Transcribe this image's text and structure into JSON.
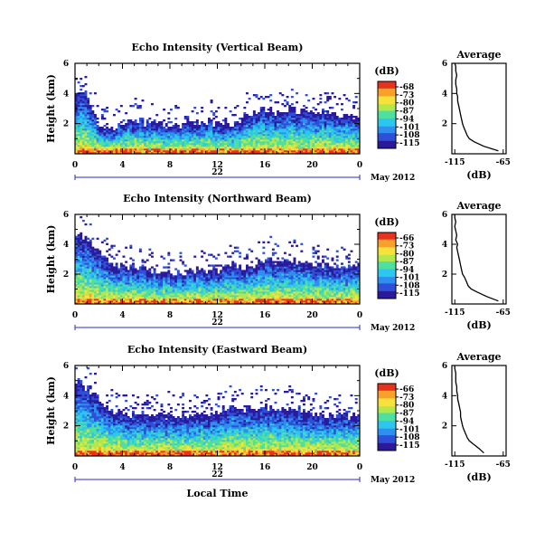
{
  "chart_data": [
    {
      "type": "heatmap",
      "title": "Echo Intensity (Vertical Beam)",
      "ylabel": "Height (km)",
      "xlabel": "",
      "x_ticks": [
        "0",
        "4",
        "8",
        "12",
        "16",
        "20",
        "0"
      ],
      "y_ticks": [
        "2",
        "4",
        "6"
      ],
      "date_ticks": [
        "22"
      ],
      "month_label": "May 2012",
      "xlim": [
        0,
        24
      ],
      "ylim": [
        0,
        6
      ],
      "colorbar": {
        "label": "(dB)",
        "ticks": [
          "-68",
          "-73",
          "-80",
          "-87",
          "-94",
          "-101",
          "-108",
          "-115"
        ]
      },
      "cloud_top_km": [
        4.0,
        3.6,
        1.6,
        1.6,
        2.0,
        2.2,
        2.0,
        1.9,
        1.8,
        1.8,
        2.0,
        2.1,
        1.9,
        1.8,
        2.2,
        2.8,
        2.9,
        2.6,
        2.9,
        2.7,
        2.7,
        2.8,
        2.6,
        2.4,
        2.4
      ],
      "average": {
        "title": "Average",
        "xlabel": "(dB)",
        "x_ticks": [
          "-115",
          "-65"
        ],
        "xlim": [
          -118,
          -62
        ],
        "y_ticks": [
          "2",
          "4",
          "6"
        ],
        "ylim": [
          0,
          6
        ],
        "heights_km": [
          0.2,
          0.5,
          0.8,
          1.0,
          1.2,
          1.5,
          1.8,
          2.0,
          2.3,
          2.6,
          2.9,
          3.2,
          3.5,
          3.8,
          4.0,
          4.3,
          4.6,
          4.9,
          5.2,
          5.5,
          5.8,
          6.0
        ],
        "values_db": [
          -70,
          -85,
          -95,
          -100,
          -102,
          -104,
          -106,
          -107,
          -108,
          -109,
          -110,
          -111,
          -112,
          -112,
          -113,
          -113,
          -114,
          -114,
          -113,
          -114,
          -114,
          -115
        ]
      }
    },
    {
      "type": "heatmap",
      "title": "Echo Intensity (Northward Beam)",
      "ylabel": "Height (km)",
      "xlabel": "",
      "x_ticks": [
        "0",
        "4",
        "8",
        "12",
        "16",
        "20",
        "0"
      ],
      "y_ticks": [
        "2",
        "4",
        "6"
      ],
      "date_ticks": [
        "22"
      ],
      "month_label": "May 2012",
      "xlim": [
        0,
        24
      ],
      "ylim": [
        0,
        6
      ],
      "colorbar": {
        "label": "(dB)",
        "ticks": [
          "-66",
          "-73",
          "-80",
          "-87",
          "-94",
          "-101",
          "-108",
          "-115"
        ]
      },
      "cloud_top_km": [
        4.6,
        4.2,
        3.3,
        2.6,
        2.4,
        2.4,
        2.2,
        2.2,
        2.0,
        2.0,
        2.2,
        2.2,
        2.2,
        2.6,
        2.4,
        2.6,
        3.0,
        2.8,
        2.8,
        2.8,
        2.6,
        2.6,
        2.4,
        2.4,
        2.4
      ],
      "average": {
        "title": "Average",
        "xlabel": "(dB)",
        "x_ticks": [
          "-115",
          "-65"
        ],
        "xlim": [
          -118,
          -62
        ],
        "y_ticks": [
          "2",
          "4",
          "6"
        ],
        "ylim": [
          0,
          6
        ],
        "heights_km": [
          0.2,
          0.5,
          0.8,
          1.0,
          1.2,
          1.5,
          1.8,
          2.0,
          2.3,
          2.6,
          2.9,
          3.2,
          3.5,
          3.8,
          4.0,
          4.3,
          4.6,
          4.9,
          5.2,
          5.5,
          5.8,
          6.0
        ],
        "values_db": [
          -70,
          -82,
          -92,
          -98,
          -101,
          -103,
          -105,
          -107,
          -108,
          -109,
          -110,
          -111,
          -112,
          -113,
          -112,
          -114,
          -113,
          -114,
          -115,
          -114,
          -115,
          -115
        ]
      }
    },
    {
      "type": "heatmap",
      "title": "Echo Intensity (Eastward Beam)",
      "ylabel": "Height (km)",
      "xlabel": "Local Time",
      "x_ticks": [
        "0",
        "4",
        "8",
        "12",
        "16",
        "20",
        "0"
      ],
      "y_ticks": [
        "2",
        "4",
        "6"
      ],
      "date_ticks": [
        "22"
      ],
      "month_label": "May 2012",
      "xlim": [
        0,
        24
      ],
      "ylim": [
        0,
        6
      ],
      "colorbar": {
        "label": "(dB)",
        "ticks": [
          "-66",
          "-73",
          "-80",
          "-87",
          "-94",
          "-101",
          "-108",
          "-115"
        ]
      },
      "cloud_top_km": [
        4.8,
        4.4,
        3.6,
        3.0,
        2.8,
        2.6,
        2.6,
        2.6,
        2.6,
        2.6,
        2.6,
        2.8,
        2.8,
        3.2,
        3.0,
        3.0,
        3.2,
        3.0,
        3.0,
        3.0,
        2.8,
        2.6,
        2.6,
        2.6,
        2.6
      ],
      "average": {
        "title": "Average",
        "xlabel": "(dB)",
        "x_ticks": [
          "-115",
          "-65"
        ],
        "xlim": [
          -118,
          -62
        ],
        "y_ticks": [
          "2",
          "4",
          "6"
        ],
        "ylim": [
          0,
          6
        ],
        "heights_km": [
          0.2,
          0.5,
          0.8,
          1.0,
          1.2,
          1.5,
          1.8,
          2.0,
          2.3,
          2.6,
          2.9,
          3.2,
          3.5,
          3.8,
          4.0,
          4.3,
          4.6,
          4.9,
          5.2,
          5.5,
          5.8,
          6.0
        ],
        "values_db": [
          -85,
          -90,
          -96,
          -100,
          -102,
          -104,
          -106,
          -107,
          -108,
          -109,
          -109,
          -110,
          -111,
          -112,
          -112,
          -113,
          -113,
          -114,
          -114,
          -114,
          -115,
          -115
        ]
      }
    }
  ],
  "colormap": [
    "#2a1a9a",
    "#2f4fd8",
    "#2f8ff0",
    "#2cc7ee",
    "#4fe0a0",
    "#b4e84a",
    "#f6e23a",
    "#f8a02a",
    "#e8321e"
  ]
}
